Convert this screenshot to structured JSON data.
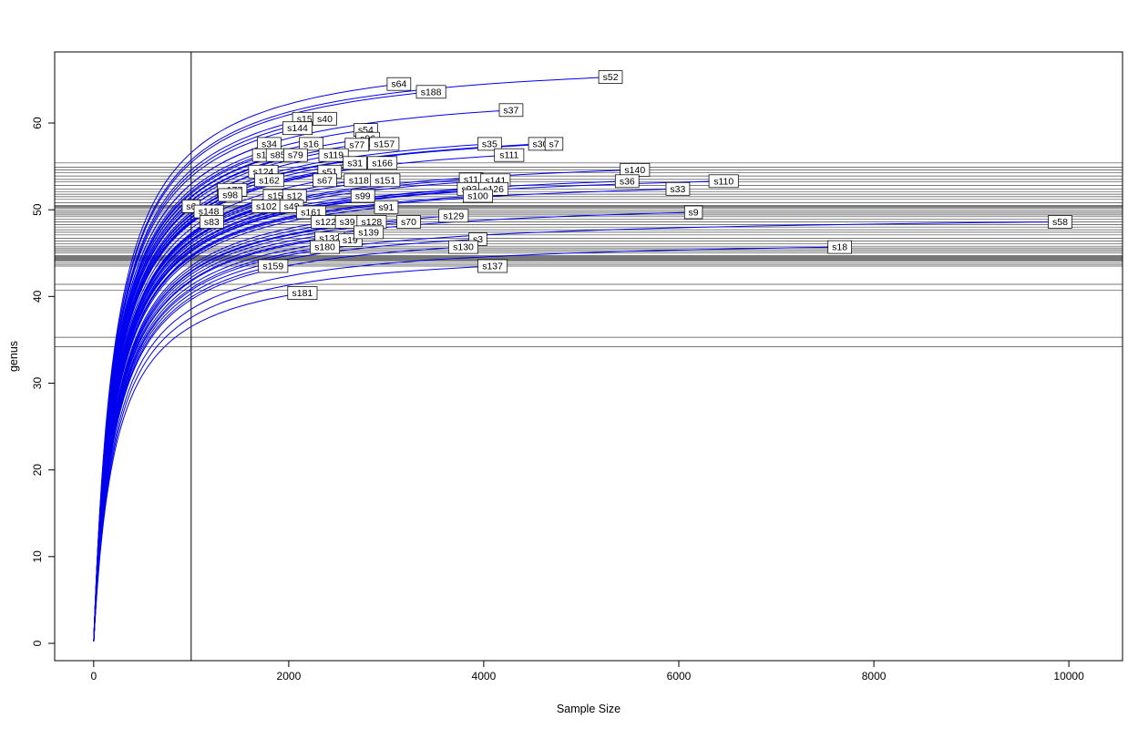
{
  "chart_data": {
    "type": "line",
    "title": "",
    "xlabel": "Sample Size",
    "ylabel": "genus",
    "x_ticks": [
      0,
      2000,
      4000,
      6000,
      8000,
      10000
    ],
    "y_ticks": [
      0,
      10,
      20,
      30,
      40,
      50,
      60
    ],
    "x_range": [
      -400,
      10550
    ],
    "y_range": [
      -2,
      68.2
    ],
    "grid": false,
    "legend": "none",
    "curve_color": "#0000EE",
    "hline_color": "#4a4a4a",
    "vline_x": 1000,
    "series": [
      {
        "name": "s52",
        "end_x": 5300,
        "end_y": 65.3
      },
      {
        "name": "s64",
        "end_x": 3130,
        "end_y": 64.5
      },
      {
        "name": "s188",
        "end_x": 3460,
        "end_y": 63.6
      },
      {
        "name": "s37",
        "end_x": 4280,
        "end_y": 61.5
      },
      {
        "name": "s155",
        "end_x": 2190,
        "end_y": 60.5
      },
      {
        "name": "s40",
        "end_x": 2370,
        "end_y": 60.5
      },
      {
        "name": "s144",
        "end_x": 2090,
        "end_y": 59.4
      },
      {
        "name": "s54",
        "end_x": 2790,
        "end_y": 59.2
      },
      {
        "name": "s96",
        "end_x": 2810,
        "end_y": 58.2
      },
      {
        "name": "s34",
        "end_x": 1800,
        "end_y": 57.6
      },
      {
        "name": "s16",
        "end_x": 2230,
        "end_y": 57.6
      },
      {
        "name": "s77",
        "end_x": 2700,
        "end_y": 57.5
      },
      {
        "name": "s157",
        "end_x": 2980,
        "end_y": 57.6
      },
      {
        "name": "s35",
        "end_x": 4060,
        "end_y": 57.6
      },
      {
        "name": "s30",
        "end_x": 4580,
        "end_y": 57.6
      },
      {
        "name": "s7",
        "end_x": 4720,
        "end_y": 57.6
      },
      {
        "name": "s1",
        "end_x": 1720,
        "end_y": 56.3
      },
      {
        "name": "s85",
        "end_x": 1890,
        "end_y": 56.3
      },
      {
        "name": "s79",
        "end_x": 2070,
        "end_y": 56.3
      },
      {
        "name": "s119",
        "end_x": 2460,
        "end_y": 56.3
      },
      {
        "name": "s111",
        "end_x": 4260,
        "end_y": 56.3
      },
      {
        "name": "s31",
        "end_x": 2680,
        "end_y": 55.4
      },
      {
        "name": "s166",
        "end_x": 2960,
        "end_y": 55.4
      },
      {
        "name": "s124",
        "end_x": 1740,
        "end_y": 54.4
      },
      {
        "name": "s51",
        "end_x": 2420,
        "end_y": 54.4
      },
      {
        "name": "s140",
        "end_x": 5550,
        "end_y": 54.6
      },
      {
        "name": "s162",
        "end_x": 1800,
        "end_y": 53.4
      },
      {
        "name": "s67",
        "end_x": 2370,
        "end_y": 53.4
      },
      {
        "name": "s118",
        "end_x": 2720,
        "end_y": 53.4
      },
      {
        "name": "s151",
        "end_x": 2990,
        "end_y": 53.4
      },
      {
        "name": "s11",
        "end_x": 3870,
        "end_y": 53.5
      },
      {
        "name": "s141",
        "end_x": 4120,
        "end_y": 53.4
      },
      {
        "name": "s36",
        "end_x": 5470,
        "end_y": 53.3
      },
      {
        "name": "s110",
        "end_x": 6460,
        "end_y": 53.3
      },
      {
        "name": "s177",
        "end_x": 1420,
        "end_y": 52.3
      },
      {
        "name": "s92",
        "end_x": 3850,
        "end_y": 52.4
      },
      {
        "name": "s126",
        "end_x": 4100,
        "end_y": 52.4
      },
      {
        "name": "s33",
        "end_x": 5990,
        "end_y": 52.4
      },
      {
        "name": "s98",
        "end_x": 1400,
        "end_y": 51.7
      },
      {
        "name": "s156",
        "end_x": 1890,
        "end_y": 51.6
      },
      {
        "name": "s12",
        "end_x": 2060,
        "end_y": 51.6
      },
      {
        "name": "s99",
        "end_x": 2760,
        "end_y": 51.6
      },
      {
        "name": "s100",
        "end_x": 3940,
        "end_y": 51.6
      },
      {
        "name": "s6",
        "end_x": 1000,
        "end_y": 50.4
      },
      {
        "name": "s148",
        "end_x": 1180,
        "end_y": 49.8
      },
      {
        "name": "s102",
        "end_x": 1770,
        "end_y": 50.4
      },
      {
        "name": "s49",
        "end_x": 2030,
        "end_y": 50.4
      },
      {
        "name": "s161",
        "end_x": 2230,
        "end_y": 49.7
      },
      {
        "name": "s91",
        "end_x": 3000,
        "end_y": 50.3
      },
      {
        "name": "s9",
        "end_x": 6150,
        "end_y": 49.7
      },
      {
        "name": "s83",
        "end_x": 1210,
        "end_y": 48.6
      },
      {
        "name": "s122",
        "end_x": 2380,
        "end_y": 48.6
      },
      {
        "name": "s39",
        "end_x": 2600,
        "end_y": 48.6
      },
      {
        "name": "s128",
        "end_x": 2850,
        "end_y": 48.6
      },
      {
        "name": "s70",
        "end_x": 3230,
        "end_y": 48.6
      },
      {
        "name": "s129",
        "end_x": 3690,
        "end_y": 49.3
      },
      {
        "name": "s58",
        "end_x": 9910,
        "end_y": 48.6
      },
      {
        "name": "s132",
        "end_x": 2420,
        "end_y": 46.7
      },
      {
        "name": "s19",
        "end_x": 2630,
        "end_y": 46.5
      },
      {
        "name": "s139",
        "end_x": 2820,
        "end_y": 47.4
      },
      {
        "name": "s3",
        "end_x": 3940,
        "end_y": 46.6
      },
      {
        "name": "s180",
        "end_x": 2370,
        "end_y": 45.7
      },
      {
        "name": "s130",
        "end_x": 3790,
        "end_y": 45.7
      },
      {
        "name": "s18",
        "end_x": 7650,
        "end_y": 45.7
      },
      {
        "name": "s159",
        "end_x": 1840,
        "end_y": 43.5
      },
      {
        "name": "s137",
        "end_x": 4090,
        "end_y": 43.5
      },
      {
        "name": "s181",
        "end_x": 2140,
        "end_y": 40.4
      }
    ],
    "hline_values": [
      55.4,
      54.9,
      54.6,
      54.3,
      53.9,
      53.5,
      53.2,
      52.8,
      52.4,
      52.1,
      51.8,
      51.5,
      51.2,
      50.8,
      50.5,
      50.4,
      50.3,
      50.2,
      50.0,
      49.8,
      49.6,
      49.4,
      49.2,
      48.9,
      48.6,
      48.3,
      48.0,
      47.7,
      47.4,
      47.1,
      46.7,
      46.4,
      46.1,
      45.8,
      45.6,
      45.4,
      45.2,
      45.0,
      44.7,
      44.6,
      44.5,
      44.4,
      44.3,
      44.2,
      44.1,
      43.9,
      43.7,
      43.5,
      41.4,
      40.7,
      35.3,
      34.2
    ]
  }
}
